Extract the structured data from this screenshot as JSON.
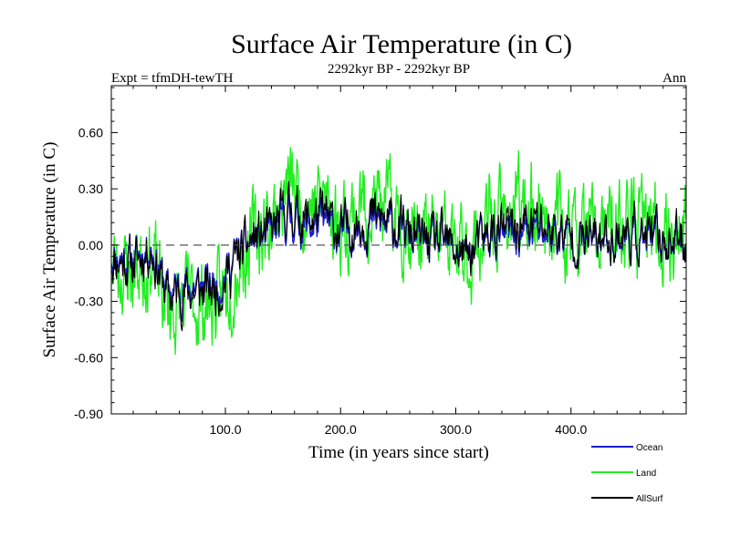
{
  "header": {
    "expt_label": "Expt = tfmDH-tewTH",
    "period_label": "2292kyr BP - 2292kyr BP",
    "season_label": "Ann"
  },
  "chart_data": {
    "type": "line",
    "title": "Surface Air Temperature (in C)",
    "xlabel": "Time (in years since start)",
    "ylabel": "Surface Air Temperature (in C)",
    "xlim": [
      1,
      500
    ],
    "ylim": [
      -0.9,
      0.85
    ],
    "xticks": [
      100,
      200,
      300,
      400
    ],
    "xtick_labels": [
      "100.0",
      "200.0",
      "300.0",
      "400.0"
    ],
    "yticks": [
      -0.9,
      -0.6,
      -0.3,
      0.0,
      0.3,
      0.6
    ],
    "ytick_labels": [
      "-0.90",
      "-0.60",
      "-0.30",
      "0.00",
      "0.30",
      "0.60"
    ],
    "zero_line": 0.0,
    "trend_years": [
      1,
      20,
      35,
      50,
      65,
      80,
      95,
      110,
      125,
      140,
      155,
      170,
      185,
      200,
      215,
      230,
      250,
      270,
      290,
      310,
      330,
      350,
      370,
      390,
      410,
      430,
      450,
      470,
      490,
      500
    ],
    "series": [
      {
        "name": "Ocean",
        "color": "#1c1ccc",
        "offsets": [
          -0.05,
          -0.08,
          0.0,
          -0.25,
          -0.22,
          -0.22,
          -0.2,
          -0.05,
          0.03,
          0.05,
          0.15,
          0.1,
          0.12,
          0.05,
          0.1,
          0.12,
          0.08,
          0.02,
          0.0,
          -0.05,
          0.05,
          0.05,
          0.08,
          0.05,
          0.02,
          0.03,
          0.05,
          0.02,
          0.02,
          0.02
        ],
        "noise": 0.09,
        "seed": 11
      },
      {
        "name": "Land",
        "color": "#22ee22",
        "offsets": [
          -0.1,
          -0.15,
          -0.05,
          -0.35,
          -0.3,
          -0.32,
          -0.3,
          -0.1,
          0.05,
          0.12,
          0.32,
          0.22,
          0.25,
          0.1,
          0.2,
          0.22,
          0.15,
          0.05,
          0.02,
          -0.08,
          0.12,
          0.18,
          0.2,
          0.12,
          0.05,
          0.05,
          0.1,
          0.08,
          0.05,
          0.05
        ],
        "noise": 0.18,
        "seed": 23
      },
      {
        "name": "AllSurf",
        "color": "#000000",
        "offsets": [
          -0.07,
          -0.1,
          -0.02,
          -0.28,
          -0.25,
          -0.25,
          -0.23,
          -0.07,
          0.04,
          0.07,
          0.2,
          0.14,
          0.16,
          0.07,
          0.13,
          0.15,
          0.1,
          0.03,
          0.01,
          -0.06,
          0.07,
          0.09,
          0.12,
          0.07,
          0.03,
          0.04,
          0.07,
          0.04,
          0.03,
          0.03
        ],
        "noise": 0.1,
        "seed": 11
      }
    ],
    "legend_position": "bottom-right"
  }
}
